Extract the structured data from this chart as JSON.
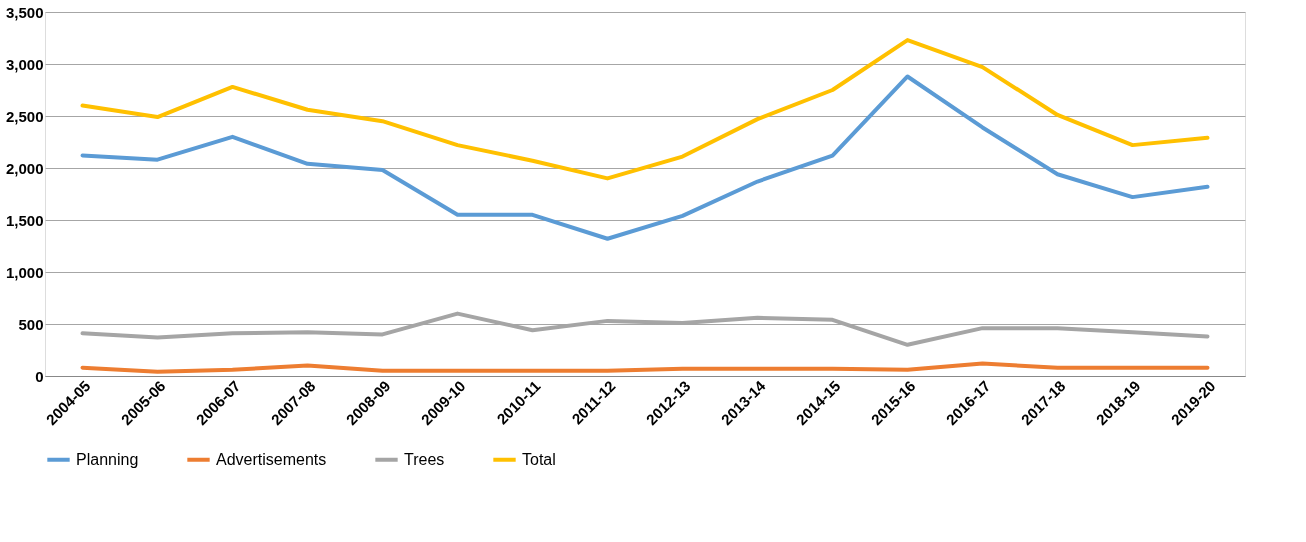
{
  "chart_data": {
    "type": "line",
    "categories": [
      "2004-05",
      "2005-06",
      "2006-07",
      "2007-08",
      "2008-09",
      "2009-10",
      "2010-11",
      "2011-12",
      "2012-13",
      "2013-14",
      "2014-15",
      "2015-16",
      "2016-17",
      "2017-18",
      "2018-19",
      "2019-20"
    ],
    "series": [
      {
        "name": "Planning",
        "color": "#5b9bd5",
        "values": [
          2120,
          2080,
          2300,
          2040,
          1980,
          1550,
          1550,
          1320,
          1540,
          1870,
          2120,
          2880,
          2390,
          1940,
          1720,
          1820
        ]
      },
      {
        "name": "Advertisements",
        "color": "#ed7d31",
        "values": [
          80,
          40,
          60,
          100,
          50,
          50,
          50,
          50,
          70,
          70,
          70,
          60,
          120,
          80,
          80,
          80
        ]
      },
      {
        "name": "Trees",
        "color": "#a5a5a5",
        "values": [
          410,
          370,
          410,
          420,
          400,
          600,
          440,
          530,
          510,
          560,
          540,
          300,
          460,
          460,
          420,
          380
        ]
      },
      {
        "name": "Total",
        "color": "#ffc000",
        "values": [
          2600,
          2490,
          2780,
          2560,
          2450,
          2220,
          2070,
          1900,
          2110,
          2470,
          2750,
          3230,
          2970,
          2510,
          2220,
          2290
        ]
      }
    ],
    "ylim": [
      0,
      3500
    ],
    "yticks": [
      {
        "value": 0,
        "label": "0"
      },
      {
        "value": 500,
        "label": "500"
      },
      {
        "value": 1000,
        "label": "1,000"
      },
      {
        "value": 1500,
        "label": "1,500"
      },
      {
        "value": 2000,
        "label": "2,000"
      },
      {
        "value": 2500,
        "label": "2,500"
      },
      {
        "value": 3000,
        "label": "3,000"
      },
      {
        "value": 3500,
        "label": "3,500"
      }
    ],
    "grid": "y",
    "legend": "bottom",
    "marker": "none",
    "line_style": "solid"
  }
}
